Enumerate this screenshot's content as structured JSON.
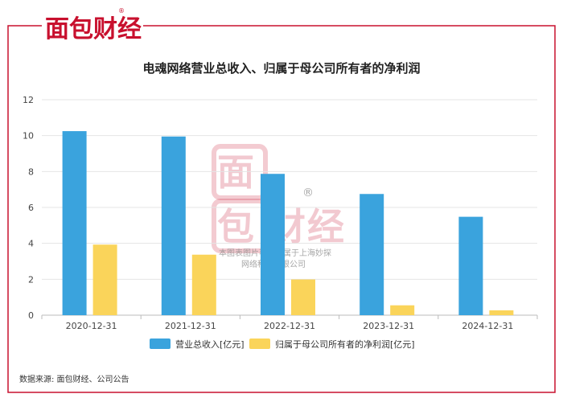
{
  "brand": {
    "name": "面包财经",
    "reg_mark": "®"
  },
  "watermark": {
    "text_line1": "本图表图片著作权属于上海妙探",
    "text_line2": "网络科技有限公司"
  },
  "colors": {
    "frame": "#c8102e",
    "series1": "#3aa3dd",
    "series2": "#fad45a",
    "grid": "#e4e4e4"
  },
  "footer": {
    "source": "数据来源: 面包财经、公司公告"
  },
  "chart_data": {
    "type": "bar",
    "title": "电魂网络营业总收入、归属于母公司所有者的净利润",
    "categories": [
      "2020-12-31",
      "2021-12-31",
      "2022-12-31",
      "2023-12-31",
      "2024-12-31"
    ],
    "series": [
      {
        "name": "营业总收入[亿元]",
        "values": [
          10.25,
          9.95,
          7.87,
          6.75,
          5.48
        ]
      },
      {
        "name": "归属于母公司所有者的净利润[亿元]",
        "values": [
          3.93,
          3.37,
          1.99,
          0.55,
          0.27
        ]
      }
    ],
    "ylim": [
      0,
      12
    ],
    "yticks": [
      0,
      2,
      4,
      6,
      8,
      10,
      12
    ],
    "grid": true,
    "legend": "bottom-center",
    "xlabel": "",
    "ylabel": ""
  }
}
